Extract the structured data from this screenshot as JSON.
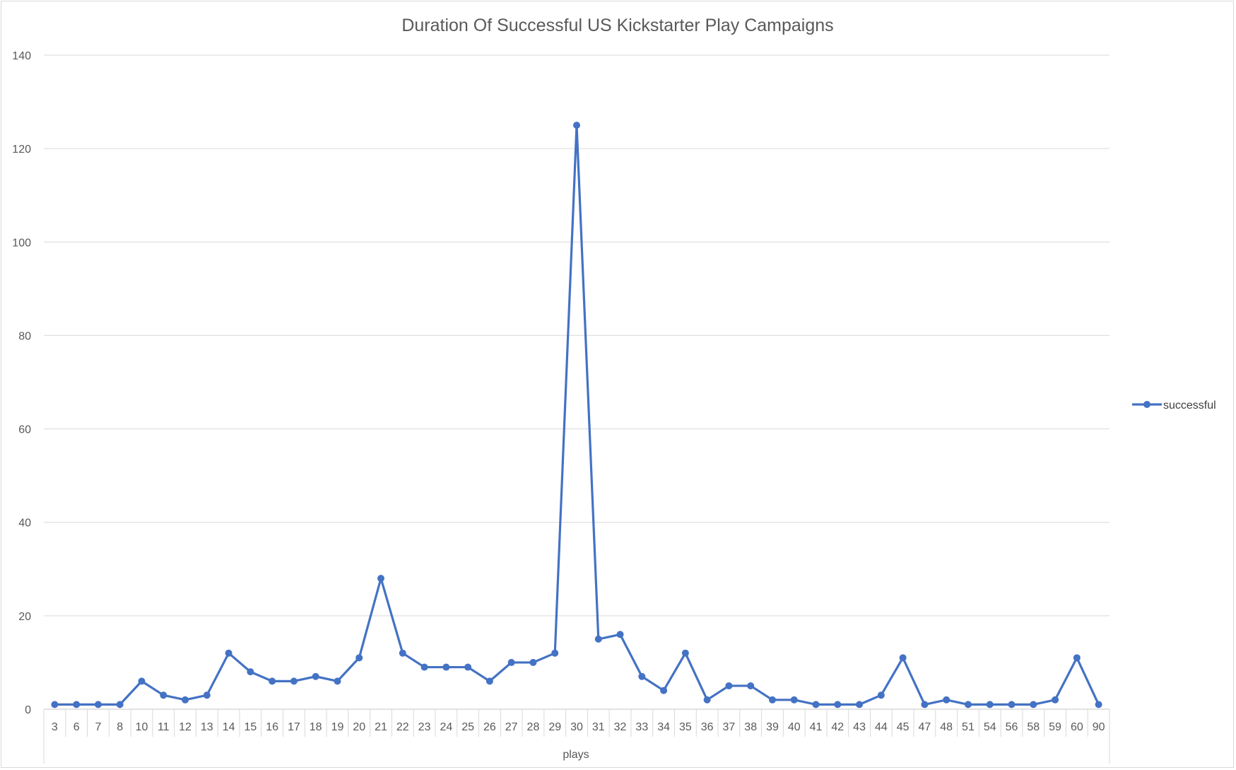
{
  "chart_data": {
    "type": "line",
    "title": "Duration Of Successful  US Kickstarter Play Campaigns",
    "xlabel": "plays",
    "ylabel": "",
    "ylim": [
      0,
      140
    ],
    "yticks": [
      0,
      20,
      40,
      60,
      80,
      100,
      120,
      140
    ],
    "grid": true,
    "legend_position": "right",
    "categories": [
      "3",
      "6",
      "7",
      "8",
      "10",
      "11",
      "12",
      "13",
      "14",
      "15",
      "16",
      "17",
      "18",
      "19",
      "20",
      "21",
      "22",
      "23",
      "24",
      "25",
      "26",
      "27",
      "28",
      "29",
      "30",
      "31",
      "32",
      "33",
      "34",
      "35",
      "36",
      "37",
      "38",
      "39",
      "40",
      "41",
      "42",
      "43",
      "44",
      "45",
      "47",
      "48",
      "51",
      "54",
      "56",
      "58",
      "59",
      "60",
      "90"
    ],
    "series": [
      {
        "name": "successful",
        "color": "#4472c4",
        "values": [
          1,
          1,
          1,
          1,
          6,
          3,
          2,
          3,
          12,
          8,
          6,
          6,
          7,
          6,
          11,
          28,
          12,
          9,
          9,
          9,
          6,
          10,
          10,
          12,
          125,
          15,
          16,
          7,
          4,
          12,
          2,
          5,
          5,
          2,
          2,
          1,
          1,
          1,
          3,
          11,
          1,
          2,
          1,
          1,
          1,
          1,
          2,
          11,
          1
        ]
      }
    ]
  }
}
